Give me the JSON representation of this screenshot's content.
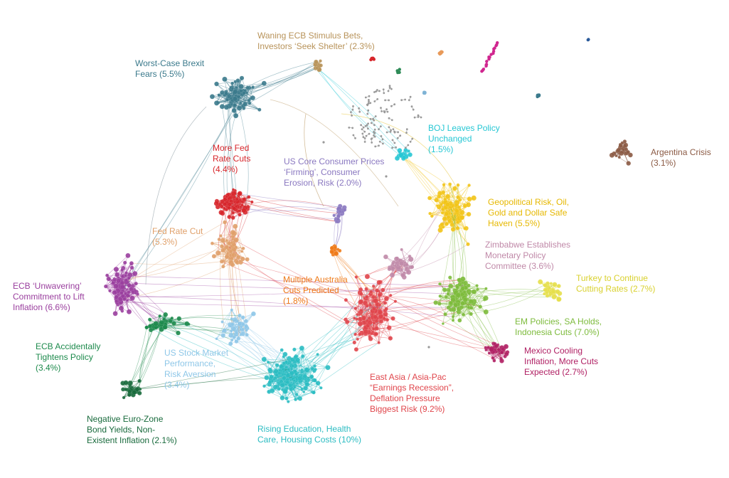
{
  "clusters": [
    {
      "id": "brexit",
      "color": "#3b7a8c",
      "label": [
        "Worst-Case Brexit",
        "Fears (5.5%)"
      ]
    },
    {
      "id": "ecb_stimulus",
      "color": "#b8935a",
      "label": [
        "Waning ECB Stimulus Bets,",
        "Investors ‘Seek Shelter’ (2.3%)"
      ]
    },
    {
      "id": "fed_cuts",
      "color": "#d7262b",
      "label": [
        "More Fed",
        "Rate Cuts",
        "(4.4%)"
      ]
    },
    {
      "id": "us_core",
      "color": "#8a78c0",
      "label": [
        "US Core Consumer Prices",
        "‘Firming’, Consumer",
        "Erosion, Risk (2.0%)"
      ]
    },
    {
      "id": "boj",
      "color": "#26c7d4",
      "label": [
        "BOJ Leaves Policy",
        "Unchanged",
        "(1.5%)"
      ]
    },
    {
      "id": "argentina",
      "color": "#8b5a44",
      "label": [
        "Argentina Crisis",
        "(3.1%)"
      ]
    },
    {
      "id": "geo",
      "color": "#f2c418",
      "label": [
        "Geopolitical Risk, Oil,",
        "Gold and Dollar Safe",
        "Haven (5.5%)"
      ]
    },
    {
      "id": "fed_rate_cut",
      "color": "#e0a06a",
      "label": [
        "Fed Rate Cut",
        "(5.3%)"
      ]
    },
    {
      "id": "zimbabwe",
      "color": "#c089a8",
      "label": [
        "Zimbabwe Establishes",
        "Monetary Policy",
        "Committee (3.6%)"
      ]
    },
    {
      "id": "turkey",
      "color": "#e5df4a",
      "label": [
        "Turkey to Continue",
        "Cutting Rates (2.7%)"
      ]
    },
    {
      "id": "ecb_unwavering",
      "color": "#9a3f9e",
      "label": [
        "ECB ‘Unwavering’",
        "Commitment to Lift",
        "Inflation (6.6%)"
      ]
    },
    {
      "id": "australia",
      "color": "#ee7a18",
      "label": [
        "Multiple Australia",
        "Cuts Predicted",
        "(1.8%)"
      ]
    },
    {
      "id": "em",
      "color": "#7dbb3c",
      "label": [
        "EM Policies, SA Holds,",
        "Indonesia Cuts (7.0%)"
      ]
    },
    {
      "id": "ecb_tightens",
      "color": "#1d8a4c",
      "label": [
        "ECB Accidentally",
        "Tightens Policy",
        "(3.4%)"
      ]
    },
    {
      "id": "us_stock",
      "color": "#8ec7e8",
      "label": [
        "US Stock Market",
        "Performance,",
        "Risk Aversion",
        "(3.4%)"
      ]
    },
    {
      "id": "mexico",
      "color": "#b01f63",
      "label": [
        "Mexico Cooling",
        "Inflation, More Cuts",
        "Expected (2.7%)"
      ]
    },
    {
      "id": "east_asia",
      "color": "#e0454b",
      "label": [
        "East Asia / Asia-Pac",
        "“Earnings Recession”,",
        "Deflation Pressure",
        "Biggest Risk (9.2%)"
      ]
    },
    {
      "id": "neg_euro",
      "color": "#186a3c",
      "label": [
        "Negative Euro-Zone",
        "Bond Yields, Non-",
        "Existent Inflation (2.1%)"
      ]
    },
    {
      "id": "education",
      "color": "#2bbcc2",
      "label": [
        "Rising Education, Health",
        "Care, Housing Costs (10%)"
      ]
    }
  ]
}
